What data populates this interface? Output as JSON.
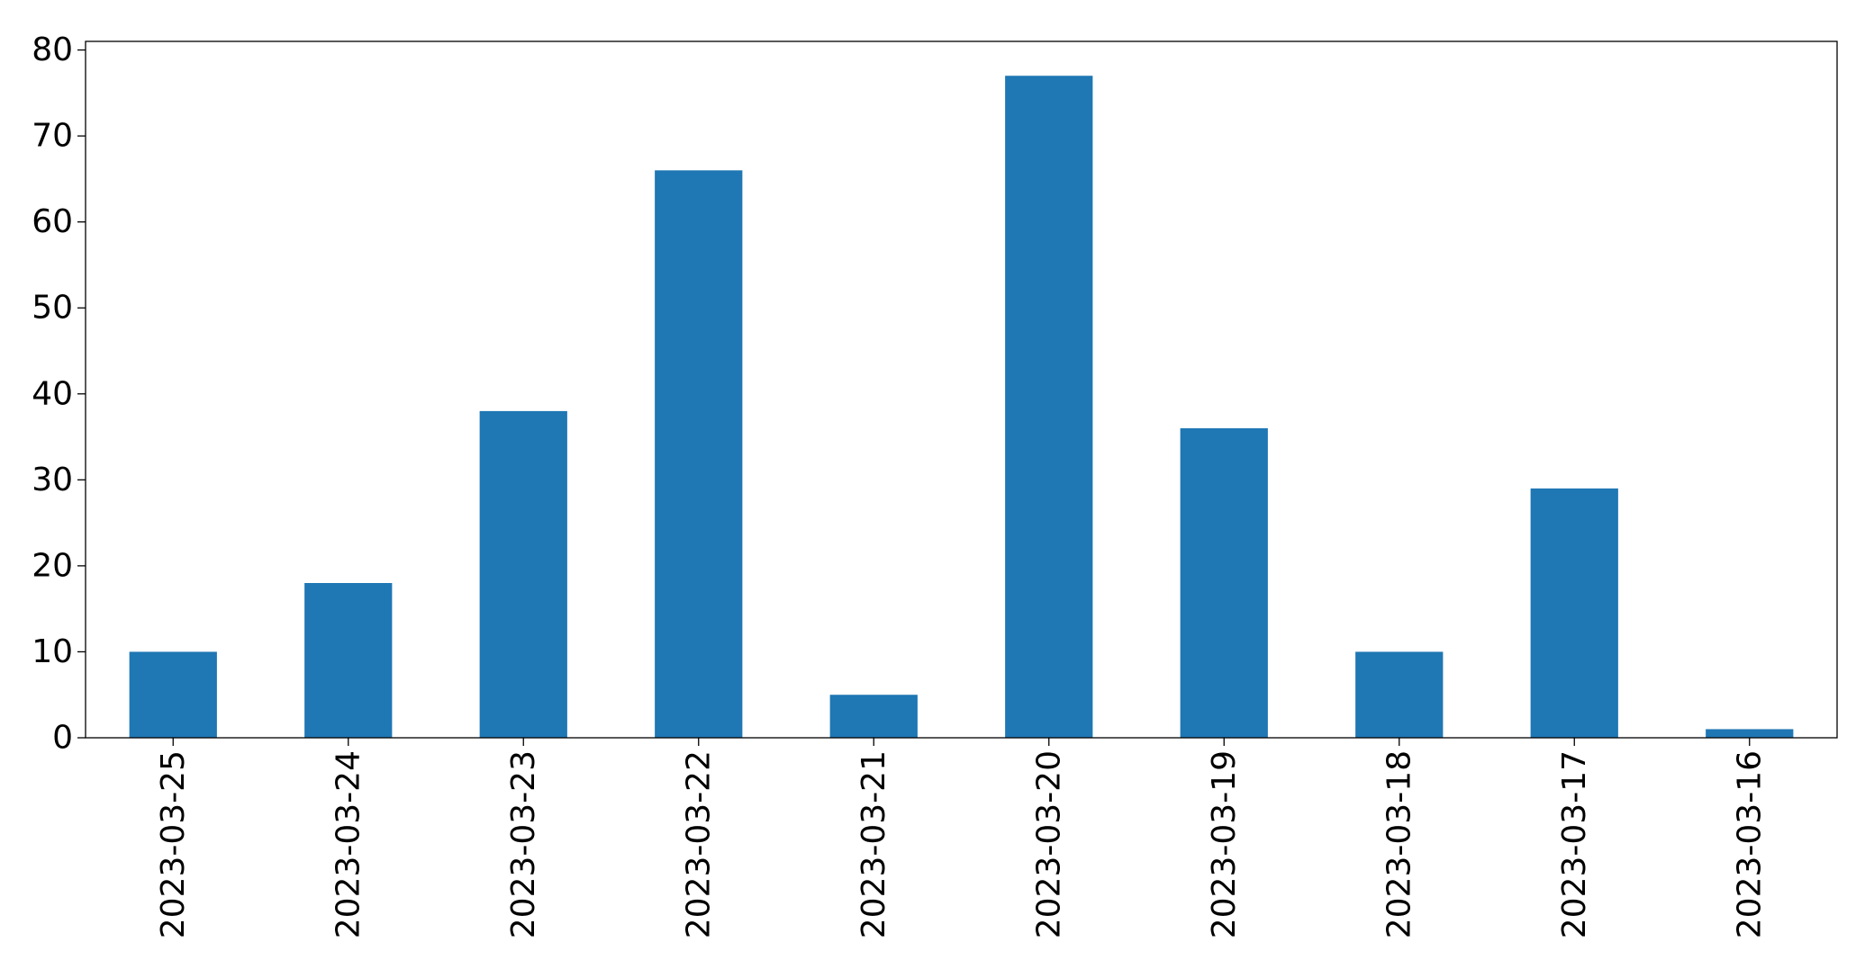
{
  "chart_data": {
    "type": "bar",
    "title": "",
    "xlabel": "",
    "ylabel": "",
    "categories": [
      "2023-03-25",
      "2023-03-24",
      "2023-03-23",
      "2023-03-22",
      "2023-03-21",
      "2023-03-20",
      "2023-03-19",
      "2023-03-18",
      "2023-03-17",
      "2023-03-16"
    ],
    "values": [
      10,
      18,
      38,
      66,
      5,
      77,
      36,
      10,
      29,
      1
    ],
    "ylim": [
      0,
      81
    ],
    "yticks": [
      0,
      10,
      20,
      30,
      40,
      50,
      60,
      70,
      80
    ],
    "ytick_labels": [
      "0",
      "10",
      "20",
      "30",
      "40",
      "50",
      "60",
      "70",
      "80"
    ],
    "xtick_rotation": "vertical",
    "grid": false,
    "legend": "none",
    "bar_color": "#1f77b4"
  }
}
